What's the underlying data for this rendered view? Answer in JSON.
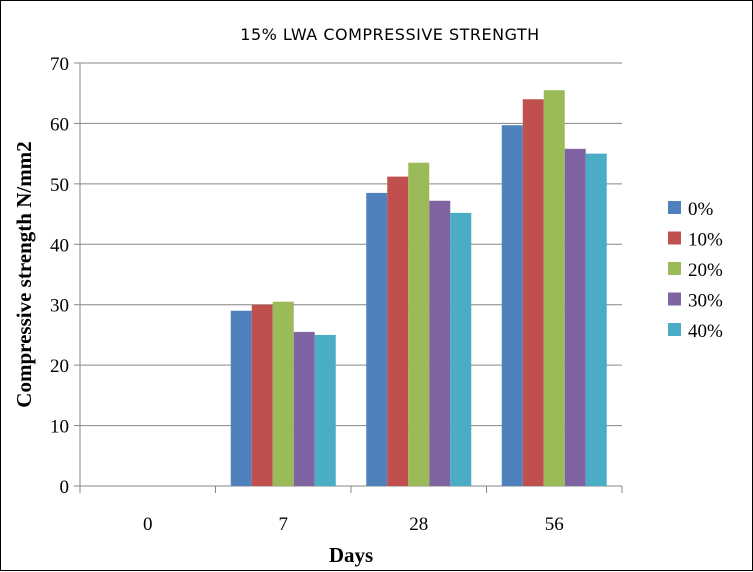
{
  "chart_data": {
    "type": "bar",
    "title": "15%  LWA  COMPRESSIVE  STRENGTH",
    "xlabel": "Days",
    "ylabel": "Compressive strength N/mm2",
    "categories": [
      "0",
      "7",
      "28",
      "56"
    ],
    "ylim": [
      0,
      70
    ],
    "yticks": [
      0,
      10,
      20,
      30,
      40,
      50,
      60,
      70
    ],
    "grid": true,
    "legend_position": "right",
    "series": [
      {
        "name": "0%",
        "color": "#4F81BD",
        "values": [
          0,
          29,
          48.5,
          59.7
        ]
      },
      {
        "name": "10%",
        "color": "#C0504D",
        "values": [
          0,
          30,
          51.2,
          64
        ]
      },
      {
        "name": "20%",
        "color": "#9BBB59",
        "values": [
          0,
          30.5,
          53.5,
          65.5
        ]
      },
      {
        "name": "30%",
        "color": "#8064A2",
        "values": [
          0,
          25.5,
          47.2,
          55.8
        ]
      },
      {
        "name": "40%",
        "color": "#4BACC6",
        "values": [
          0,
          25,
          45.2,
          55
        ]
      }
    ]
  }
}
